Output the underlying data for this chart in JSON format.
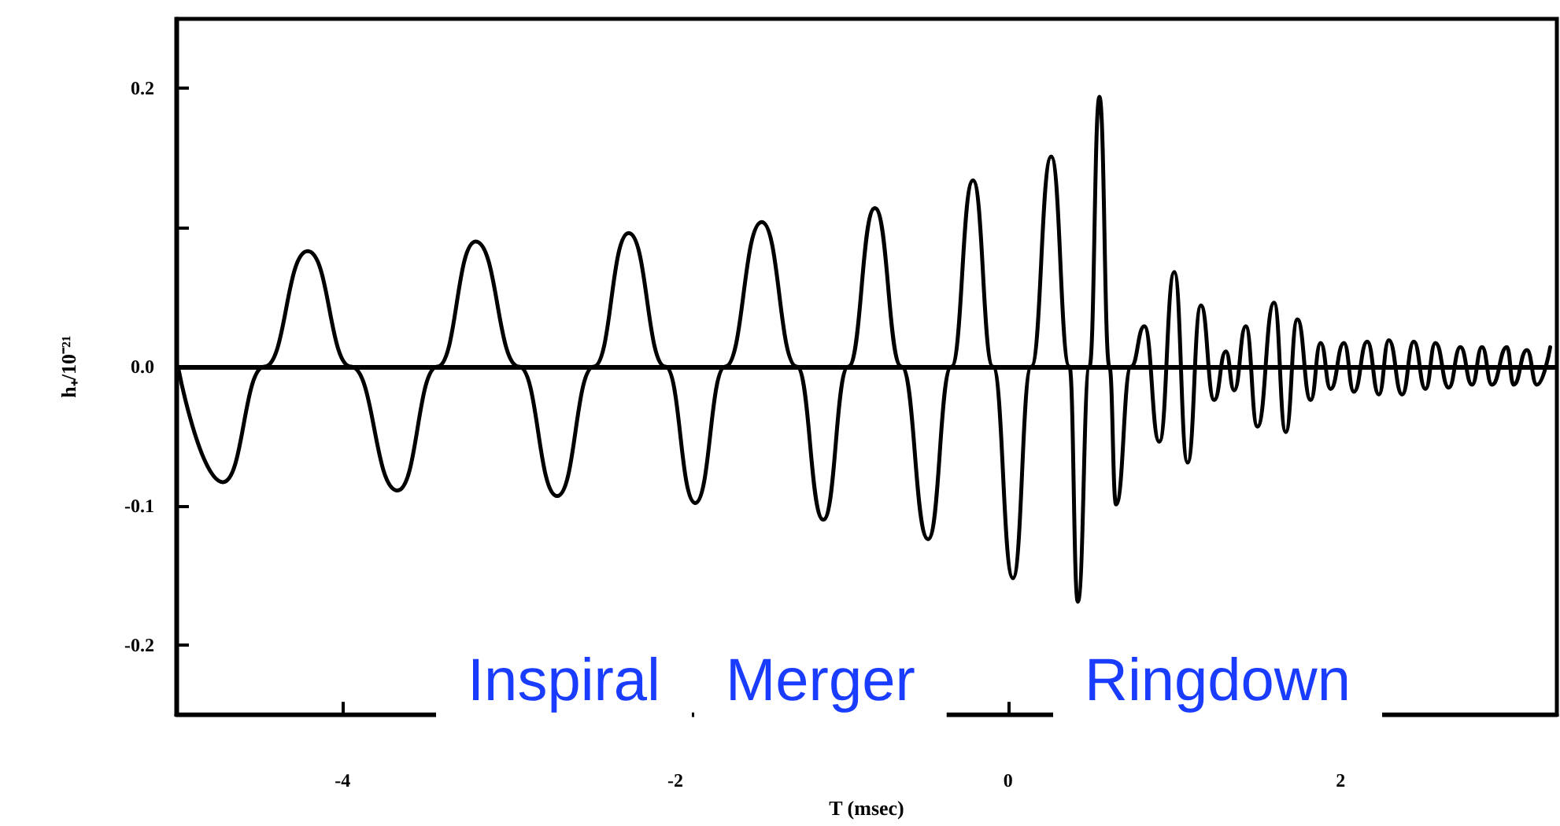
{
  "chart_data": {
    "type": "line",
    "xlabel": "T (msec)",
    "ylabel": "h₊/10⁻²¹",
    "annotations": [
      "Inspiral",
      "Merger",
      "Ringdown"
    ],
    "xlim": [
      -5,
      3.3
    ],
    "xticks": [
      -4,
      -2,
      0,
      2
    ],
    "ylim": [
      -0.25,
      0.25
    ],
    "yticks": [
      -0.2,
      -0.1,
      {
        "value": 0,
        "label": "0.0"
      },
      {
        "value": 0.1,
        "label": null
      },
      0.2
    ],
    "grid": false,
    "marker": "none",
    "line_style": "solid",
    "ref_lines": [
      {
        "axis": "y",
        "value": 0,
        "color": "#000000"
      }
    ],
    "series": [
      {
        "color": "#000000",
        "x": [
          -4.99,
          -4.72,
          -4.47,
          -4.21,
          -3.95,
          -3.67,
          -3.43,
          -3.2,
          -2.94,
          -2.71,
          -2.49,
          -2.28,
          -2.06,
          -1.88,
          -1.7,
          -1.48,
          -1.27,
          -1.11,
          -0.96,
          -0.8,
          -0.64,
          -0.48,
          -0.34,
          -0.21,
          -0.09,
          0.03,
          0.14,
          0.26,
          0.37,
          0.42,
          0.49,
          0.55,
          0.61,
          0.65,
          0.74,
          0.82,
          0.91,
          1.0,
          1.08,
          1.16,
          1.24,
          1.31,
          1.36,
          1.43,
          1.5,
          1.6,
          1.67,
          1.74,
          1.82,
          1.88,
          1.94,
          2.02,
          2.08,
          2.16,
          2.23,
          2.29,
          2.37,
          2.44,
          2.51,
          2.57,
          2.65,
          2.72,
          2.79,
          2.85,
          2.91,
          3.0,
          3.04,
          3.12,
          3.18,
          3.26
        ],
        "values": [
          0,
          -0.083,
          0,
          0.083,
          0,
          -0.089,
          0,
          0.09,
          0,
          -0.093,
          0,
          0.096,
          0,
          -0.098,
          0,
          0.104,
          0,
          -0.11,
          0,
          0.114,
          0,
          -0.124,
          0,
          0.134,
          0,
          -0.152,
          0,
          0.151,
          0,
          -0.169,
          0,
          0.194,
          0,
          -0.099,
          0,
          0.029,
          -0.054,
          0.068,
          -0.069,
          0.044,
          -0.024,
          0.011,
          -0.017,
          0.029,
          -0.043,
          0.046,
          -0.047,
          0.034,
          -0.024,
          0.017,
          -0.016,
          0.017,
          -0.018,
          0.018,
          -0.02,
          0.019,
          -0.02,
          0.018,
          -0.016,
          0.017,
          -0.015,
          0.014,
          -0.013,
          0.014,
          -0.013,
          0.014,
          -0.013,
          0.012,
          -0.013,
          0.014
        ]
      }
    ]
  }
}
